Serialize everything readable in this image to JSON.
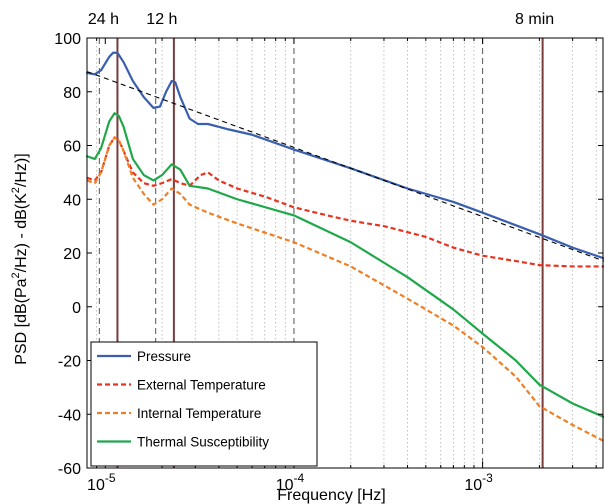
{
  "chart_data": {
    "type": "line",
    "xlabel": "Frequency [Hz]",
    "ylabel_parts": [
      "PSD [dB(Pa",
      "2",
      "/Hz) - dB(K",
      "2",
      "/Hz)]"
    ],
    "xscale": "log",
    "xlim": [
      8e-06,
      0.0044
    ],
    "ylim": [
      -60,
      100
    ],
    "yticks": [
      -60,
      -40,
      -20,
      0,
      20,
      40,
      60,
      80,
      100
    ],
    "xticks": [
      {
        "value": 1e-05,
        "base": "10",
        "exp": "-5"
      },
      {
        "value": 0.0001,
        "base": "10",
        "exp": "-4"
      },
      {
        "value": 0.001,
        "base": "10",
        "exp": "-3"
      }
    ],
    "period_markers": [
      {
        "label": "24 h",
        "freq": 1.16e-05
      },
      {
        "label": "12 h",
        "freq": 2.31e-05
      },
      {
        "label": "8 min",
        "freq": 0.00208
      }
    ],
    "dashed_reference_lines": [
      9.3e-06,
      1.85e-05,
      0.0001,
      0.001
    ],
    "legend": {
      "placement": "bottom-left"
    },
    "series": [
      {
        "name": "Pressure",
        "color": "#3a5fae",
        "style": "solid",
        "points": [
          [
            8e-06,
            87
          ],
          [
            8.8e-06,
            86.5
          ],
          [
            9.5e-06,
            88
          ],
          [
            1.05e-05,
            93
          ],
          [
            1.1e-05,
            94.5
          ],
          [
            1.16e-05,
            94.5
          ],
          [
            1.25e-05,
            91
          ],
          [
            1.4e-05,
            84
          ],
          [
            1.6e-05,
            78
          ],
          [
            1.8e-05,
            74
          ],
          [
            1.95e-05,
            74.5
          ],
          [
            2.1e-05,
            80
          ],
          [
            2.25e-05,
            84
          ],
          [
            2.35e-05,
            83.5
          ],
          [
            2.5e-05,
            78
          ],
          [
            2.8e-05,
            70
          ],
          [
            3.1e-05,
            68
          ],
          [
            3.5e-05,
            68
          ],
          [
            4.5e-05,
            66
          ],
          [
            6e-05,
            64
          ],
          [
            0.0001,
            58.5
          ],
          [
            0.0002,
            51.5
          ],
          [
            0.0004,
            44
          ],
          [
            0.0007,
            39
          ],
          [
            0.001,
            35
          ],
          [
            0.002,
            27
          ],
          [
            0.003,
            22
          ],
          [
            0.0044,
            18
          ]
        ]
      },
      {
        "name": "External Temperature",
        "color": "#e8341f",
        "style": "dashed",
        "points": [
          [
            8e-06,
            48
          ],
          [
            8.8e-06,
            47
          ],
          [
            9.5e-06,
            50
          ],
          [
            1.05e-05,
            60
          ],
          [
            1.12e-05,
            63
          ],
          [
            1.18e-05,
            62
          ],
          [
            1.25e-05,
            58
          ],
          [
            1.4e-05,
            50
          ],
          [
            1.6e-05,
            46
          ],
          [
            1.8e-05,
            45
          ],
          [
            2e-05,
            46
          ],
          [
            2.25e-05,
            47.5
          ],
          [
            2.5e-05,
            46
          ],
          [
            2.8e-05,
            45
          ],
          [
            3.2e-05,
            49
          ],
          [
            3.5e-05,
            50
          ],
          [
            4e-05,
            47
          ],
          [
            5e-05,
            44
          ],
          [
            7e-05,
            41
          ],
          [
            0.0001,
            37
          ],
          [
            0.00015,
            34
          ],
          [
            0.0002,
            32
          ],
          [
            0.0003,
            30
          ],
          [
            0.0005,
            26
          ],
          [
            0.0007,
            22
          ],
          [
            0.001,
            19
          ],
          [
            0.0015,
            17
          ],
          [
            0.002,
            15.5
          ],
          [
            0.003,
            15
          ],
          [
            0.0044,
            15
          ]
        ]
      },
      {
        "name": "Internal Temperature",
        "color": "#f07f23",
        "style": "dashed",
        "points": [
          [
            8e-06,
            47
          ],
          [
            8.8e-06,
            46
          ],
          [
            9.5e-06,
            50
          ],
          [
            1.05e-05,
            60
          ],
          [
            1.12e-05,
            63
          ],
          [
            1.18e-05,
            62
          ],
          [
            1.25e-05,
            58
          ],
          [
            1.4e-05,
            48
          ],
          [
            1.6e-05,
            42
          ],
          [
            1.8e-05,
            38
          ],
          [
            2e-05,
            40
          ],
          [
            2.25e-05,
            44
          ],
          [
            2.5e-05,
            42
          ],
          [
            2.8e-05,
            38
          ],
          [
            3.5e-05,
            35
          ],
          [
            5e-05,
            31
          ],
          [
            0.0001,
            24
          ],
          [
            0.0002,
            15
          ],
          [
            0.0004,
            3
          ],
          [
            0.0007,
            -7
          ],
          [
            0.001,
            -15
          ],
          [
            0.0015,
            -26
          ],
          [
            0.002,
            -37
          ],
          [
            0.003,
            -44
          ],
          [
            0.0044,
            -50
          ]
        ]
      },
      {
        "name": "Thermal Susceptibility",
        "color": "#1fa84a",
        "style": "solid",
        "points": [
          [
            8e-06,
            56
          ],
          [
            8.8e-06,
            55
          ],
          [
            9.5e-06,
            59
          ],
          [
            1.05e-05,
            69
          ],
          [
            1.12e-05,
            72
          ],
          [
            1.18e-05,
            71
          ],
          [
            1.25e-05,
            67
          ],
          [
            1.4e-05,
            55
          ],
          [
            1.6e-05,
            49
          ],
          [
            1.8e-05,
            47
          ],
          [
            2e-05,
            49
          ],
          [
            2.25e-05,
            53
          ],
          [
            2.5e-05,
            51
          ],
          [
            2.8e-05,
            45
          ],
          [
            3.5e-05,
            44
          ],
          [
            5e-05,
            40
          ],
          [
            0.0001,
            34
          ],
          [
            0.0002,
            24
          ],
          [
            0.0004,
            11
          ],
          [
            0.0007,
            -1
          ],
          [
            0.001,
            -10
          ],
          [
            0.0015,
            -20
          ],
          [
            0.002,
            -29
          ],
          [
            0.003,
            -36
          ],
          [
            0.0044,
            -41
          ]
        ]
      },
      {
        "name": "",
        "color": "#000000",
        "style": "dashed-black",
        "points": [
          [
            8e-06,
            87.5
          ],
          [
            0.0044,
            17
          ]
        ]
      }
    ]
  }
}
